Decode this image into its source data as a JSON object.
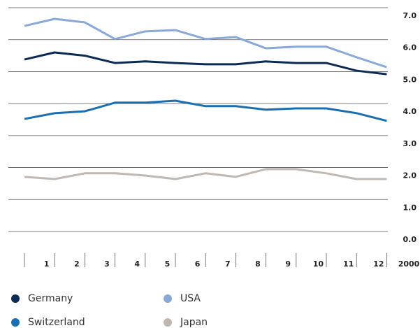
{
  "chart_data": {
    "type": "line",
    "categories": [
      "1",
      "2",
      "3",
      "4",
      "5",
      "6",
      "7",
      "8",
      "9",
      "10",
      "11",
      "12",
      "2000"
    ],
    "series": [
      {
        "name": "Germany",
        "color": "#0d2a55",
        "values": [
          5.38,
          5.6,
          5.5,
          5.27,
          5.32,
          5.27,
          5.23,
          5.23,
          5.32,
          5.27,
          5.27,
          5.03,
          4.92
        ]
      },
      {
        "name": "USA",
        "color": "#8aa9d8",
        "values": [
          6.43,
          6.65,
          6.54,
          6.02,
          6.26,
          6.3,
          6.02,
          6.08,
          5.73,
          5.78,
          5.78,
          5.45,
          5.14
        ]
      },
      {
        "name": "Switzerland",
        "color": "#1a6fb0",
        "values": [
          3.52,
          3.7,
          3.76,
          4.03,
          4.03,
          4.09,
          3.92,
          3.92,
          3.81,
          3.85,
          3.85,
          3.7,
          3.46
        ]
      },
      {
        "name": "Japan",
        "color": "#bfb8b3",
        "values": [
          1.71,
          1.64,
          1.82,
          1.82,
          1.75,
          1.64,
          1.82,
          1.71,
          1.95,
          1.95,
          1.82,
          1.64,
          1.64
        ]
      }
    ],
    "ylim": [
      0,
      7
    ],
    "yticks": [
      {
        "value": 0,
        "label": "0.0"
      },
      {
        "value": 1,
        "label": "1.0"
      },
      {
        "value": 2,
        "label": "2.0"
      },
      {
        "value": 3,
        "label": "3.0"
      },
      {
        "value": 4,
        "label": "4.0"
      },
      {
        "value": 5,
        "label": "5.0"
      },
      {
        "value": 6,
        "label": "6.0"
      },
      {
        "value": 7,
        "label": "7.0"
      }
    ],
    "grid": true
  }
}
